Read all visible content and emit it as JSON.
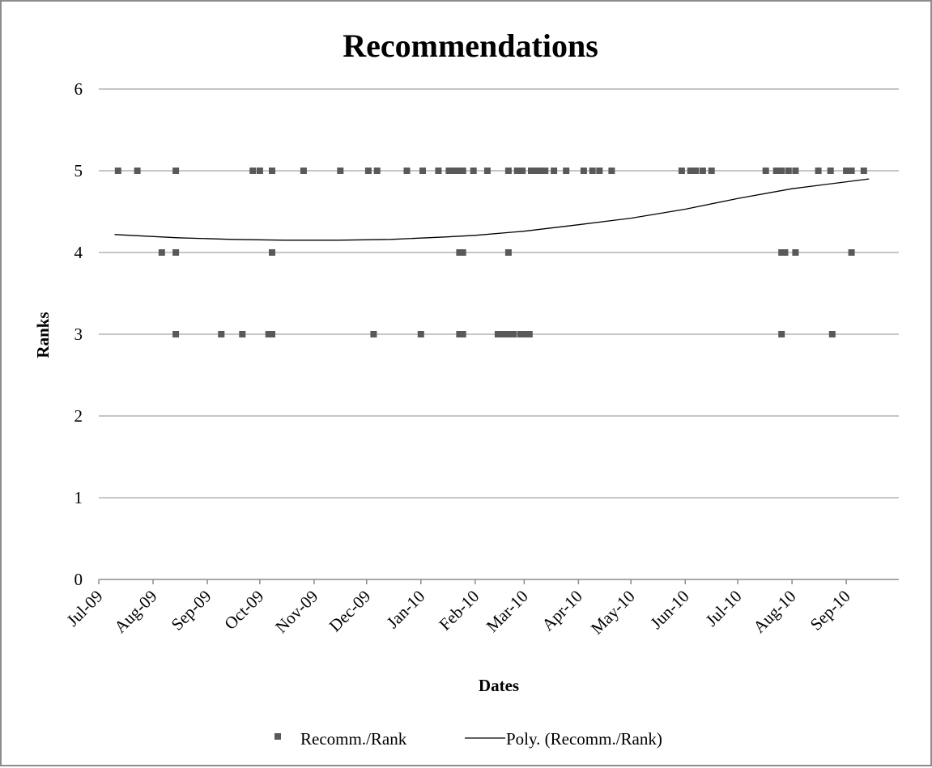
{
  "chart_data": {
    "type": "scatter",
    "title": "Recommendations",
    "xlabel": "Dates",
    "ylabel": "Ranks",
    "ylim": [
      0,
      6
    ],
    "yticks": [
      "0",
      "1",
      "2",
      "3",
      "4",
      "5",
      "6"
    ],
    "xlim": [
      "2009-07-01",
      "2010-10-01"
    ],
    "xticks": [
      {
        "date": "2009-07-01",
        "label": "Jul-09"
      },
      {
        "date": "2009-08-01",
        "label": "Aug-09"
      },
      {
        "date": "2009-09-01",
        "label": "Sep-09"
      },
      {
        "date": "2009-10-01",
        "label": "Oct-09"
      },
      {
        "date": "2009-11-01",
        "label": "Nov-09"
      },
      {
        "date": "2009-12-01",
        "label": "Dec-09"
      },
      {
        "date": "2010-01-01",
        "label": "Jan-10"
      },
      {
        "date": "2010-02-01",
        "label": "Feb-10"
      },
      {
        "date": "2010-03-01",
        "label": "Mar-10"
      },
      {
        "date": "2010-04-01",
        "label": "Apr-10"
      },
      {
        "date": "2010-05-01",
        "label": "May-10"
      },
      {
        "date": "2010-06-01",
        "label": "Jun-10"
      },
      {
        "date": "2010-07-01",
        "label": "Jul-10"
      },
      {
        "date": "2010-08-01",
        "label": "Aug-10"
      },
      {
        "date": "2010-09-01",
        "label": "Sep-10"
      }
    ],
    "grid": true,
    "legend_position": "bottom",
    "series": [
      {
        "name": "Recomm./Rank",
        "color": "#595959",
        "marker": "square",
        "points": [
          {
            "x": "2009-07-12",
            "y": 5
          },
          {
            "x": "2009-07-23",
            "y": 5
          },
          {
            "x": "2009-08-14",
            "y": 5
          },
          {
            "x": "2009-09-27",
            "y": 5
          },
          {
            "x": "2009-10-01",
            "y": 5
          },
          {
            "x": "2009-10-08",
            "y": 5
          },
          {
            "x": "2009-10-26",
            "y": 5
          },
          {
            "x": "2009-11-16",
            "y": 5
          },
          {
            "x": "2009-12-02",
            "y": 5
          },
          {
            "x": "2009-12-07",
            "y": 5
          },
          {
            "x": "2009-12-24",
            "y": 5
          },
          {
            "x": "2010-01-02",
            "y": 5
          },
          {
            "x": "2010-01-11",
            "y": 5
          },
          {
            "x": "2010-01-17",
            "y": 5
          },
          {
            "x": "2010-01-20",
            "y": 5
          },
          {
            "x": "2010-01-23",
            "y": 5
          },
          {
            "x": "2010-01-25",
            "y": 5
          },
          {
            "x": "2010-01-31",
            "y": 5
          },
          {
            "x": "2010-02-08",
            "y": 5
          },
          {
            "x": "2010-02-20",
            "y": 5
          },
          {
            "x": "2010-02-25",
            "y": 5
          },
          {
            "x": "2010-02-28",
            "y": 5
          },
          {
            "x": "2010-03-05",
            "y": 5
          },
          {
            "x": "2010-03-08",
            "y": 5
          },
          {
            "x": "2010-03-10",
            "y": 5
          },
          {
            "x": "2010-03-13",
            "y": 5
          },
          {
            "x": "2010-03-18",
            "y": 5
          },
          {
            "x": "2010-03-25",
            "y": 5
          },
          {
            "x": "2010-04-04",
            "y": 5
          },
          {
            "x": "2010-04-09",
            "y": 5
          },
          {
            "x": "2010-04-13",
            "y": 5
          },
          {
            "x": "2010-04-20",
            "y": 5
          },
          {
            "x": "2010-05-30",
            "y": 5
          },
          {
            "x": "2010-06-04",
            "y": 5
          },
          {
            "x": "2010-06-07",
            "y": 5
          },
          {
            "x": "2010-06-11",
            "y": 5
          },
          {
            "x": "2010-06-16",
            "y": 5
          },
          {
            "x": "2010-07-17",
            "y": 5
          },
          {
            "x": "2010-07-23",
            "y": 5
          },
          {
            "x": "2010-07-26",
            "y": 5
          },
          {
            "x": "2010-07-30",
            "y": 5
          },
          {
            "x": "2010-08-03",
            "y": 5
          },
          {
            "x": "2010-08-16",
            "y": 5
          },
          {
            "x": "2010-08-23",
            "y": 5
          },
          {
            "x": "2010-09-01",
            "y": 5
          },
          {
            "x": "2010-09-04",
            "y": 5
          },
          {
            "x": "2010-09-11",
            "y": 5
          },
          {
            "x": "2009-08-06",
            "y": 4
          },
          {
            "x": "2009-08-14",
            "y": 4
          },
          {
            "x": "2009-10-08",
            "y": 4
          },
          {
            "x": "2010-01-23",
            "y": 4
          },
          {
            "x": "2010-01-25",
            "y": 4
          },
          {
            "x": "2010-02-20",
            "y": 4
          },
          {
            "x": "2010-07-26",
            "y": 4
          },
          {
            "x": "2010-07-28",
            "y": 4
          },
          {
            "x": "2010-08-03",
            "y": 4
          },
          {
            "x": "2010-09-04",
            "y": 4
          },
          {
            "x": "2009-08-14",
            "y": 3
          },
          {
            "x": "2009-09-09",
            "y": 3
          },
          {
            "x": "2009-09-21",
            "y": 3
          },
          {
            "x": "2009-10-06",
            "y": 3
          },
          {
            "x": "2009-10-08",
            "y": 3
          },
          {
            "x": "2009-12-05",
            "y": 3
          },
          {
            "x": "2010-01-01",
            "y": 3
          },
          {
            "x": "2010-01-23",
            "y": 3
          },
          {
            "x": "2010-01-25",
            "y": 3
          },
          {
            "x": "2010-02-14",
            "y": 3
          },
          {
            "x": "2010-02-17",
            "y": 3
          },
          {
            "x": "2010-02-20",
            "y": 3
          },
          {
            "x": "2010-02-23",
            "y": 3
          },
          {
            "x": "2010-02-27",
            "y": 3
          },
          {
            "x": "2010-03-01",
            "y": 3
          },
          {
            "x": "2010-03-04",
            "y": 3
          },
          {
            "x": "2010-07-26",
            "y": 3
          },
          {
            "x": "2010-08-24",
            "y": 3
          }
        ]
      },
      {
        "name": "Poly. (Recomm./Rank)",
        "type": "line",
        "color": "#000000",
        "points": [
          {
            "x": "2009-07-10",
            "y": 4.22
          },
          {
            "x": "2009-08-15",
            "y": 4.18
          },
          {
            "x": "2009-09-15",
            "y": 4.16
          },
          {
            "x": "2009-10-15",
            "y": 4.15
          },
          {
            "x": "2009-11-15",
            "y": 4.15
          },
          {
            "x": "2009-12-15",
            "y": 4.16
          },
          {
            "x": "2010-01-15",
            "y": 4.19
          },
          {
            "x": "2010-02-01",
            "y": 4.21
          },
          {
            "x": "2010-03-01",
            "y": 4.26
          },
          {
            "x": "2010-04-01",
            "y": 4.34
          },
          {
            "x": "2010-05-01",
            "y": 4.42
          },
          {
            "x": "2010-06-01",
            "y": 4.53
          },
          {
            "x": "2010-07-01",
            "y": 4.66
          },
          {
            "x": "2010-08-01",
            "y": 4.78
          },
          {
            "x": "2010-09-14",
            "y": 4.9
          }
        ]
      }
    ]
  }
}
